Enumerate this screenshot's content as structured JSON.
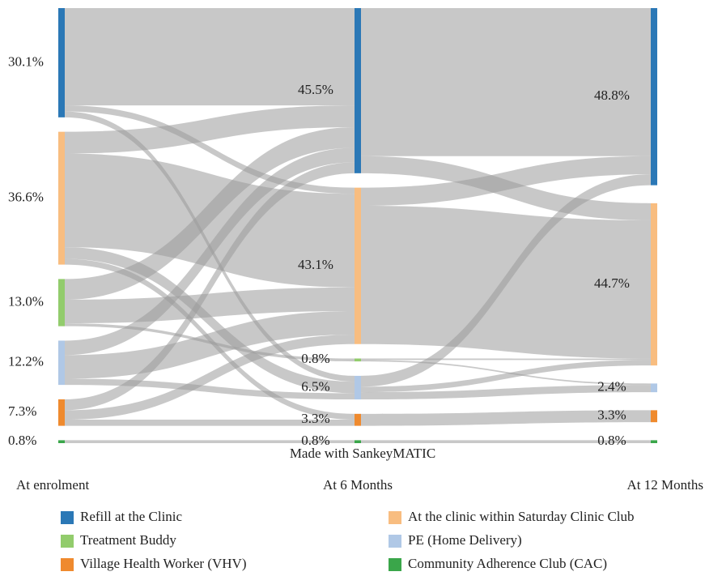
{
  "chart_data": {
    "type": "sankey",
    "nodes": [
      {
        "name": "Refill at the Clinic",
        "color": "#2b78b6"
      },
      {
        "name": "At the clinic within Saturday Clinic Club",
        "color": "#f8bd80"
      },
      {
        "name": "Treatment Buddy",
        "color": "#92cc6c"
      },
      {
        "name": "PE (Home Delivery)",
        "color": "#b0c8e6"
      },
      {
        "name": "Village Health Worker (VHV)",
        "color": "#ef8a2e"
      },
      {
        "name": "Community Adherence Club (CAC)",
        "color": "#3aa64a"
      }
    ],
    "stages": [
      {
        "name": "At enrolment",
        "values": [
          30.1,
          36.6,
          13.0,
          12.2,
          7.3,
          0.8
        ],
        "value_labels": [
          "30.1%",
          "36.6%",
          "13.0%",
          "12.2%",
          "7.3%",
          "0.8%"
        ],
        "flows": [
          [
            26.8,
            1.7,
            0,
            1.6,
            0,
            0
          ],
          [
            6.0,
            25.8,
            0,
            3.2,
            1.6,
            0
          ],
          [
            5.7,
            6.5,
            0.8,
            0,
            0,
            0
          ],
          [
            4.0,
            6.5,
            0,
            1.7,
            0,
            0
          ],
          [
            3.0,
            2.6,
            0,
            0,
            1.7,
            0
          ],
          [
            0,
            0,
            0,
            0,
            0,
            0.8
          ]
        ]
      },
      {
        "name": "At 6 Months",
        "values": [
          45.5,
          43.1,
          0.8,
          6.5,
          3.3,
          0.8
        ],
        "value_labels": [
          "45.5%",
          "43.1%",
          "0.8%",
          "6.5%",
          "3.3%",
          "0.8%"
        ],
        "flows": [
          [
            40.8,
            4.7,
            0,
            0,
            0,
            0
          ],
          [
            5.0,
            38.1,
            0,
            0,
            0,
            0
          ],
          [
            0,
            0.4,
            0,
            0.4,
            0,
            0
          ],
          [
            3.0,
            1.5,
            0,
            2.0,
            0,
            0
          ],
          [
            0,
            0,
            0,
            0,
            3.3,
            0
          ],
          [
            0,
            0,
            0,
            0,
            0,
            0.8
          ]
        ]
      },
      {
        "name": "At 12 Months",
        "values": [
          48.8,
          44.7,
          null,
          2.4,
          3.3,
          0.8
        ],
        "value_labels": [
          "48.8%",
          "44.7%",
          null,
          "2.4%",
          "3.3%",
          "0.8%"
        ]
      }
    ],
    "credit": "Made with SankeyMATIC"
  }
}
